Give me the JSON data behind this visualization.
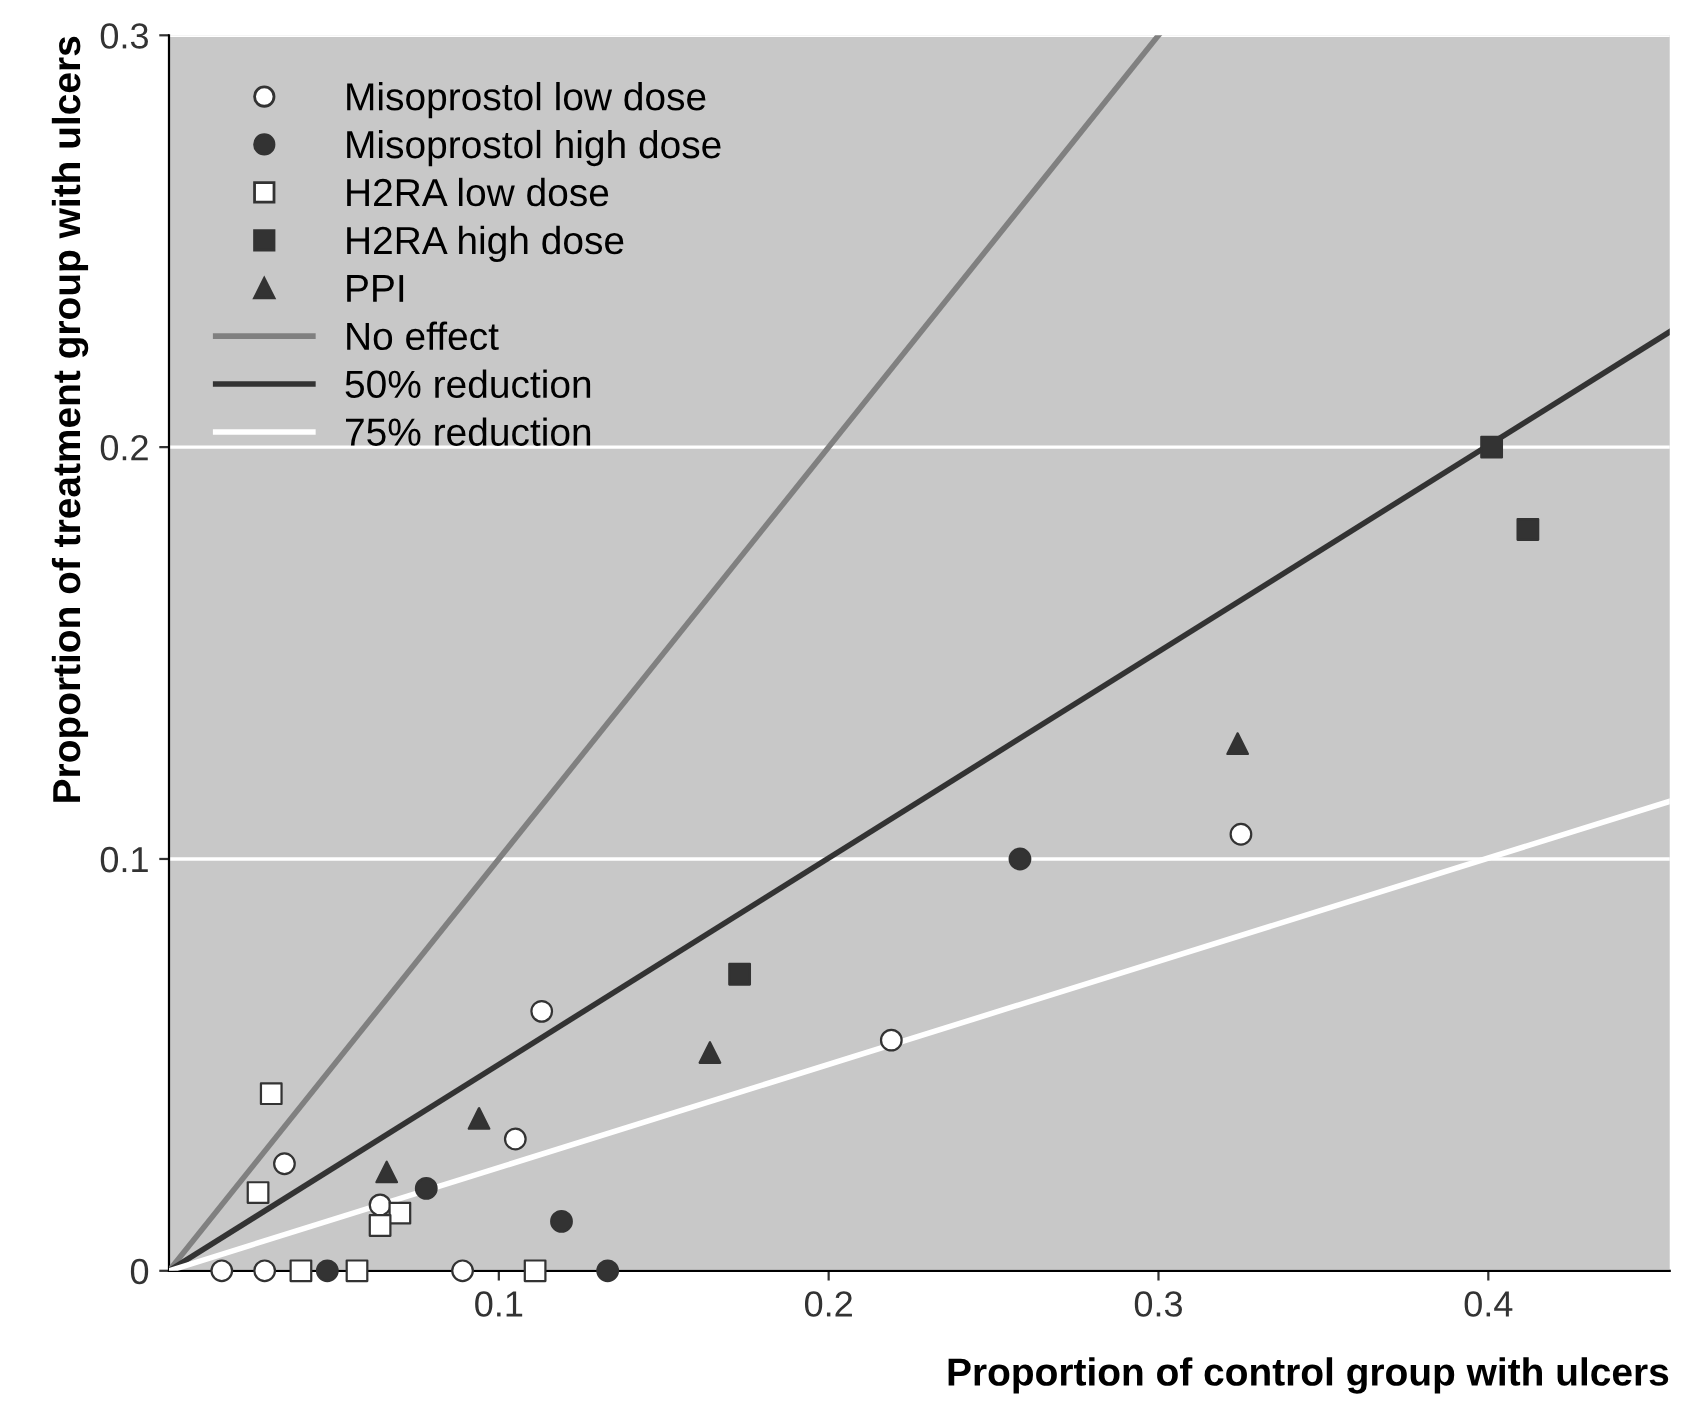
{
  "chart_data": {
    "type": "scatter",
    "xlabel": "Proportion of control group with ulcers",
    "ylabel": "Proportion of treatment group with ulcers",
    "xlim": [
      0,
      0.455
    ],
    "ylim": [
      0,
      0.3
    ],
    "xticks": [
      0.1,
      0.2,
      0.3,
      0.4
    ],
    "yticks": [
      0,
      0.1,
      0.2,
      0.3
    ],
    "grid": "y",
    "legend": "top left",
    "series": [
      {
        "name": "Misoprostol low dose",
        "marker": "circle",
        "color": "#ffffff",
        "x": [
          0.016,
          0.029,
          0.035,
          0.064,
          0.089,
          0.105,
          0.113,
          0.219,
          0.325
        ],
        "values": [
          0,
          0,
          0.026,
          0.016,
          0,
          0.032,
          0.063,
          0.056,
          0.106
        ]
      },
      {
        "name": "Misoprostol high dose",
        "marker": "circle",
        "color": "#333333",
        "x": [
          0.048,
          0.078,
          0.119,
          0.133,
          0.258
        ],
        "values": [
          0,
          0.02,
          0.012,
          0,
          0.1
        ]
      },
      {
        "name": "H2RA low dose",
        "marker": "square",
        "color": "#ffffff",
        "x": [
          0.031,
          0.027,
          0.07,
          0.064,
          0.04,
          0.057,
          0.111
        ],
        "values": [
          0.043,
          0.019,
          0.014,
          0.011,
          0,
          0,
          0
        ]
      },
      {
        "name": "H2RA high dose",
        "marker": "square",
        "color": "#333333",
        "x": [
          0.173,
          0.401,
          0.412
        ],
        "values": [
          0.072,
          0.2,
          0.18
        ]
      },
      {
        "name": "PPI",
        "marker": "triangle",
        "color": "#333333",
        "x": [
          0.066,
          0.094,
          0.164,
          0.324
        ],
        "values": [
          0.024,
          0.037,
          0.053,
          0.128
        ]
      },
      {
        "name": "No effect",
        "type": "line",
        "color": "#808080",
        "x": [
          0,
          0.3
        ],
        "values": [
          0,
          0.3
        ]
      },
      {
        "name": "50% reduction",
        "type": "line",
        "color": "#333333",
        "x": [
          0,
          0.455
        ],
        "values": [
          0,
          0.228
        ]
      },
      {
        "name": "75% reduction",
        "type": "line",
        "color": "#ffffff",
        "x": [
          0,
          0.455
        ],
        "values": [
          0,
          0.114
        ]
      }
    ]
  }
}
